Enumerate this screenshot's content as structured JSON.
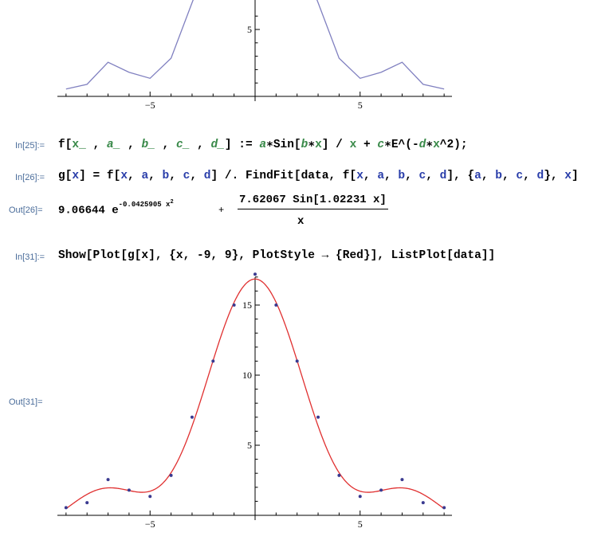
{
  "cells": {
    "in25": {
      "label": "In[25]:=",
      "parts": [
        "f[",
        "x_",
        " , ",
        "a_",
        " , ",
        "b_",
        " , ",
        "c_",
        " , ",
        "d_",
        "] := ",
        "a",
        "∗Sin[",
        "b",
        "∗",
        "x",
        "] / ",
        "x",
        " + ",
        "c",
        "∗E^(-",
        "d",
        "∗",
        "x",
        "^2);"
      ]
    },
    "in26": {
      "label": "In[26]:=",
      "parts": [
        "g[",
        "x",
        "] = f[",
        "x",
        ", ",
        "a",
        ", ",
        "b",
        ", ",
        "c",
        ", ",
        "d",
        "] /. FindFit[data, f[",
        "x",
        ", ",
        "a",
        ", ",
        "b",
        ", ",
        "c",
        ", ",
        "d",
        "], {",
        "a",
        ", ",
        "b",
        ", ",
        "c",
        ", ",
        "d",
        "}, ",
        "x",
        "]"
      ]
    },
    "out26": {
      "label": "Out[26]=",
      "coef": "9.06644 e",
      "exponent": "-0.0425905 x",
      "sq": "2",
      "plus": "+",
      "numerator": "7.62067 Sin[1.02231 x]",
      "denominator": "x"
    },
    "in31": {
      "label": "In[31]:=",
      "text": "Show[Plot[g[x], {x, -9, 9}, PlotStyle → {Red}], ListPlot[data]]"
    },
    "out31": {
      "label": "Out[31]="
    }
  },
  "chart_data": [
    {
      "type": "line",
      "x": [
        -9,
        -8,
        -7,
        -6,
        -5,
        -4,
        -3,
        -2,
        -1,
        0,
        1,
        2,
        3,
        4,
        5,
        6,
        7,
        8,
        9
      ],
      "values": [
        0.55,
        0.9,
        2.55,
        1.8,
        1.35,
        2.85,
        7,
        11,
        15,
        17.2,
        15,
        11,
        7,
        2.85,
        1.35,
        1.8,
        2.55,
        0.9,
        0.55
      ],
      "xticks": [
        "-5",
        "5"
      ],
      "yticks": [
        "5"
      ],
      "xlim": [
        -9,
        9
      ],
      "color": "#8080c0",
      "note_cropped": true
    },
    {
      "type": "scatter+line",
      "x": [
        -9,
        -8,
        -7,
        -6,
        -5,
        -4,
        -3,
        -2,
        -1,
        0,
        1,
        2,
        3,
        4,
        5,
        6,
        7,
        8,
        9
      ],
      "values": [
        0.55,
        0.9,
        2.55,
        1.8,
        1.35,
        2.85,
        7,
        11,
        15,
        17.2,
        15,
        11,
        7,
        2.85,
        1.35,
        1.8,
        2.55,
        0.9,
        0.55
      ],
      "fit": {
        "a": 7.62067,
        "b": 1.02231,
        "c": 9.06644,
        "d": 0.0425905,
        "color": "#e03030"
      },
      "point_color": "#3a3a90",
      "xticks": [
        "-5",
        "5"
      ],
      "yticks": [
        "5",
        "10",
        "15"
      ],
      "xlim": [
        -9,
        9
      ],
      "ylim": [
        0,
        17.6
      ]
    }
  ]
}
